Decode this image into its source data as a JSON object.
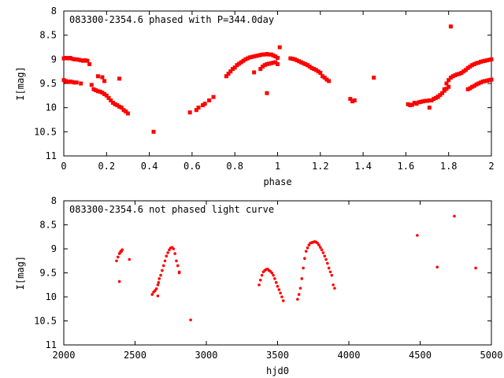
{
  "chart_data": [
    {
      "type": "scatter",
      "title": "083300-2354.6 phased with P=344.0day",
      "xlabel": "phase",
      "ylabel": "I[mag]",
      "xlim": [
        0,
        2
      ],
      "ylim": [
        8,
        11
      ],
      "y_inverted": true,
      "xticks": [
        0,
        0.2,
        0.4,
        0.6,
        0.8,
        1,
        1.2,
        1.4,
        1.6,
        1.8,
        2
      ],
      "yticks": [
        8,
        8.5,
        9,
        9.5,
        10,
        10.5,
        11
      ],
      "marker_color": "#ff0000",
      "series": [
        {
          "x": [
            0.0,
            0.01,
            0.02,
            0.03,
            0.04,
            0.05,
            0.06,
            0.07,
            0.08,
            0.09,
            0.1,
            0.11,
            0.12,
            0.0,
            0.01,
            0.02,
            0.03,
            0.04,
            0.05,
            0.06,
            0.08,
            0.13,
            0.14,
            0.15,
            0.16,
            0.17,
            0.18,
            0.19,
            0.2,
            0.21,
            0.22,
            0.23,
            0.24,
            0.25,
            0.26,
            0.27,
            0.28,
            0.29,
            0.3,
            0.16,
            0.18,
            0.19,
            0.26,
            0.42,
            0.59,
            0.62,
            0.63,
            0.65,
            0.66,
            0.68,
            0.7,
            0.76,
            0.77,
            0.78,
            0.79,
            0.8,
            0.81,
            0.82,
            0.83,
            0.84,
            0.85,
            0.86,
            0.87,
            0.88,
            0.89,
            0.9,
            0.91,
            0.92,
            0.93,
            0.94,
            0.95,
            0.96,
            0.97,
            0.98,
            0.99,
            1.0,
            0.89,
            0.92,
            0.93,
            0.94,
            0.95,
            0.96,
            0.97,
            0.98,
            0.99,
            1.0,
            0.95,
            1.01,
            1.06,
            1.07,
            1.08,
            1.09,
            1.1,
            1.11,
            1.12,
            1.13,
            1.14,
            1.15,
            1.16,
            1.17,
            1.18,
            1.19,
            1.2,
            1.21,
            1.22,
            1.23,
            1.24,
            1.34,
            1.35,
            1.36,
            1.45,
            1.61,
            1.62,
            1.63,
            1.64,
            1.65,
            1.66,
            1.67,
            1.68,
            1.69,
            1.7,
            1.71,
            1.72,
            1.73,
            1.74,
            1.75,
            1.76,
            1.77,
            1.78,
            1.79,
            1.8,
            1.71,
            1.75,
            1.78,
            1.79,
            1.8,
            1.81,
            1.82,
            1.83,
            1.84,
            1.85,
            1.86,
            1.87,
            1.88,
            1.89,
            1.9,
            1.91,
            1.92,
            1.93,
            1.94,
            1.95,
            1.96,
            1.97,
            1.98,
            1.99,
            2.0,
            1.89,
            1.9,
            1.91,
            1.92,
            1.93,
            1.94,
            1.95,
            1.96,
            1.97,
            1.98,
            1.99,
            2.0,
            1.81
          ],
          "y": [
            8.98,
            8.97,
            8.98,
            8.97,
            8.99,
            9.0,
            9.0,
            9.01,
            9.02,
            9.03,
            9.02,
            9.03,
            9.1,
            9.43,
            9.45,
            9.47,
            9.46,
            9.47,
            9.48,
            9.48,
            9.5,
            9.53,
            9.62,
            9.64,
            9.66,
            9.67,
            9.69,
            9.72,
            9.75,
            9.8,
            9.85,
            9.9,
            9.93,
            9.95,
            9.98,
            10.0,
            10.05,
            10.08,
            10.12,
            9.35,
            9.37,
            9.45,
            9.4,
            10.5,
            10.1,
            10.05,
            10.0,
            9.95,
            9.92,
            9.85,
            9.78,
            9.35,
            9.3,
            9.25,
            9.2,
            9.17,
            9.12,
            9.09,
            9.06,
            9.03,
            9.0,
            8.98,
            8.96,
            8.95,
            8.94,
            8.93,
            8.92,
            8.91,
            8.9,
            8.9,
            8.89,
            8.9,
            8.9,
            8.92,
            8.94,
            8.97,
            9.27,
            9.2,
            9.15,
            9.12,
            9.1,
            9.09,
            9.08,
            9.07,
            9.06,
            9.1,
            9.7,
            8.75,
            8.98,
            8.99,
            9.0,
            9.02,
            9.04,
            9.06,
            9.08,
            9.1,
            9.12,
            9.15,
            9.18,
            9.2,
            9.22,
            9.25,
            9.28,
            9.35,
            9.38,
            9.42,
            9.45,
            9.82,
            9.87,
            9.85,
            9.38,
            9.93,
            9.95,
            9.94,
            9.9,
            9.92,
            9.89,
            9.88,
            9.87,
            9.86,
            9.86,
            9.85,
            9.85,
            9.82,
            9.8,
            9.77,
            9.74,
            9.7,
            9.65,
            9.61,
            9.57,
            10.0,
            9.78,
            9.62,
            9.5,
            9.43,
            9.38,
            9.35,
            9.33,
            9.31,
            9.3,
            9.28,
            9.25,
            9.22,
            9.18,
            9.15,
            9.12,
            9.1,
            9.08,
            9.07,
            9.05,
            9.04,
            9.03,
            9.02,
            9.01,
            9.0,
            9.62,
            9.6,
            9.57,
            9.55,
            9.52,
            9.5,
            9.48,
            9.46,
            9.45,
            9.44,
            9.43,
            9.42,
            8.32
          ]
        }
      ]
    },
    {
      "type": "scatter",
      "title": "083300-2354.6 not phased light curve",
      "xlabel": "hjd0",
      "ylabel": "I[mag]",
      "xlim": [
        2000,
        5000
      ],
      "ylim": [
        8,
        11
      ],
      "y_inverted": true,
      "xticks": [
        2000,
        2500,
        3000,
        3500,
        4000,
        4500,
        5000
      ],
      "yticks": [
        8,
        8.5,
        9,
        9.5,
        10,
        10.5,
        11
      ],
      "marker_color": "#ff0000",
      "series": [
        {
          "x": [
            2370,
            2380,
            2390,
            2395,
            2400,
            2405,
            2410,
            2390,
            2460,
            2620,
            2630,
            2640,
            2650,
            2660,
            2665,
            2670,
            2680,
            2690,
            2700,
            2710,
            2720,
            2730,
            2740,
            2750,
            2760,
            2770,
            2780,
            2790,
            2800,
            2810,
            2660,
            2810,
            2890,
            3370,
            3380,
            3390,
            3400,
            3410,
            3420,
            3430,
            3440,
            3450,
            3460,
            3470,
            3480,
            3490,
            3500,
            3510,
            3520,
            3530,
            3540,
            3640,
            3650,
            3660,
            3670,
            3680,
            3690,
            3700,
            3710,
            3720,
            3730,
            3740,
            3750,
            3760,
            3770,
            3780,
            3790,
            3800,
            3810,
            3820,
            3830,
            3840,
            3850,
            3860,
            3870,
            3880,
            3890,
            3900,
            4480,
            4620,
            4740,
            4890
          ],
          "y": [
            9.25,
            9.17,
            9.1,
            9.08,
            9.05,
            9.05,
            9.02,
            9.68,
            9.22,
            9.95,
            9.9,
            9.87,
            9.83,
            9.75,
            9.7,
            9.62,
            9.55,
            9.45,
            9.35,
            9.25,
            9.15,
            9.08,
            9.02,
            8.98,
            8.97,
            9.0,
            9.1,
            9.25,
            9.35,
            9.5,
            9.98,
            9.48,
            10.48,
            9.75,
            9.65,
            9.55,
            9.48,
            9.45,
            9.43,
            9.42,
            9.45,
            9.47,
            9.5,
            9.55,
            9.62,
            9.7,
            9.78,
            9.85,
            9.92,
            10.0,
            10.08,
            10.05,
            9.95,
            9.82,
            9.62,
            9.4,
            9.2,
            9.05,
            8.98,
            8.92,
            8.88,
            8.87,
            8.86,
            8.85,
            8.86,
            8.88,
            8.92,
            8.97,
            9.02,
            9.08,
            9.15,
            9.22,
            9.3,
            9.4,
            9.48,
            9.55,
            9.75,
            9.82,
            8.72,
            9.38,
            8.32,
            9.4
          ]
        }
      ]
    }
  ]
}
